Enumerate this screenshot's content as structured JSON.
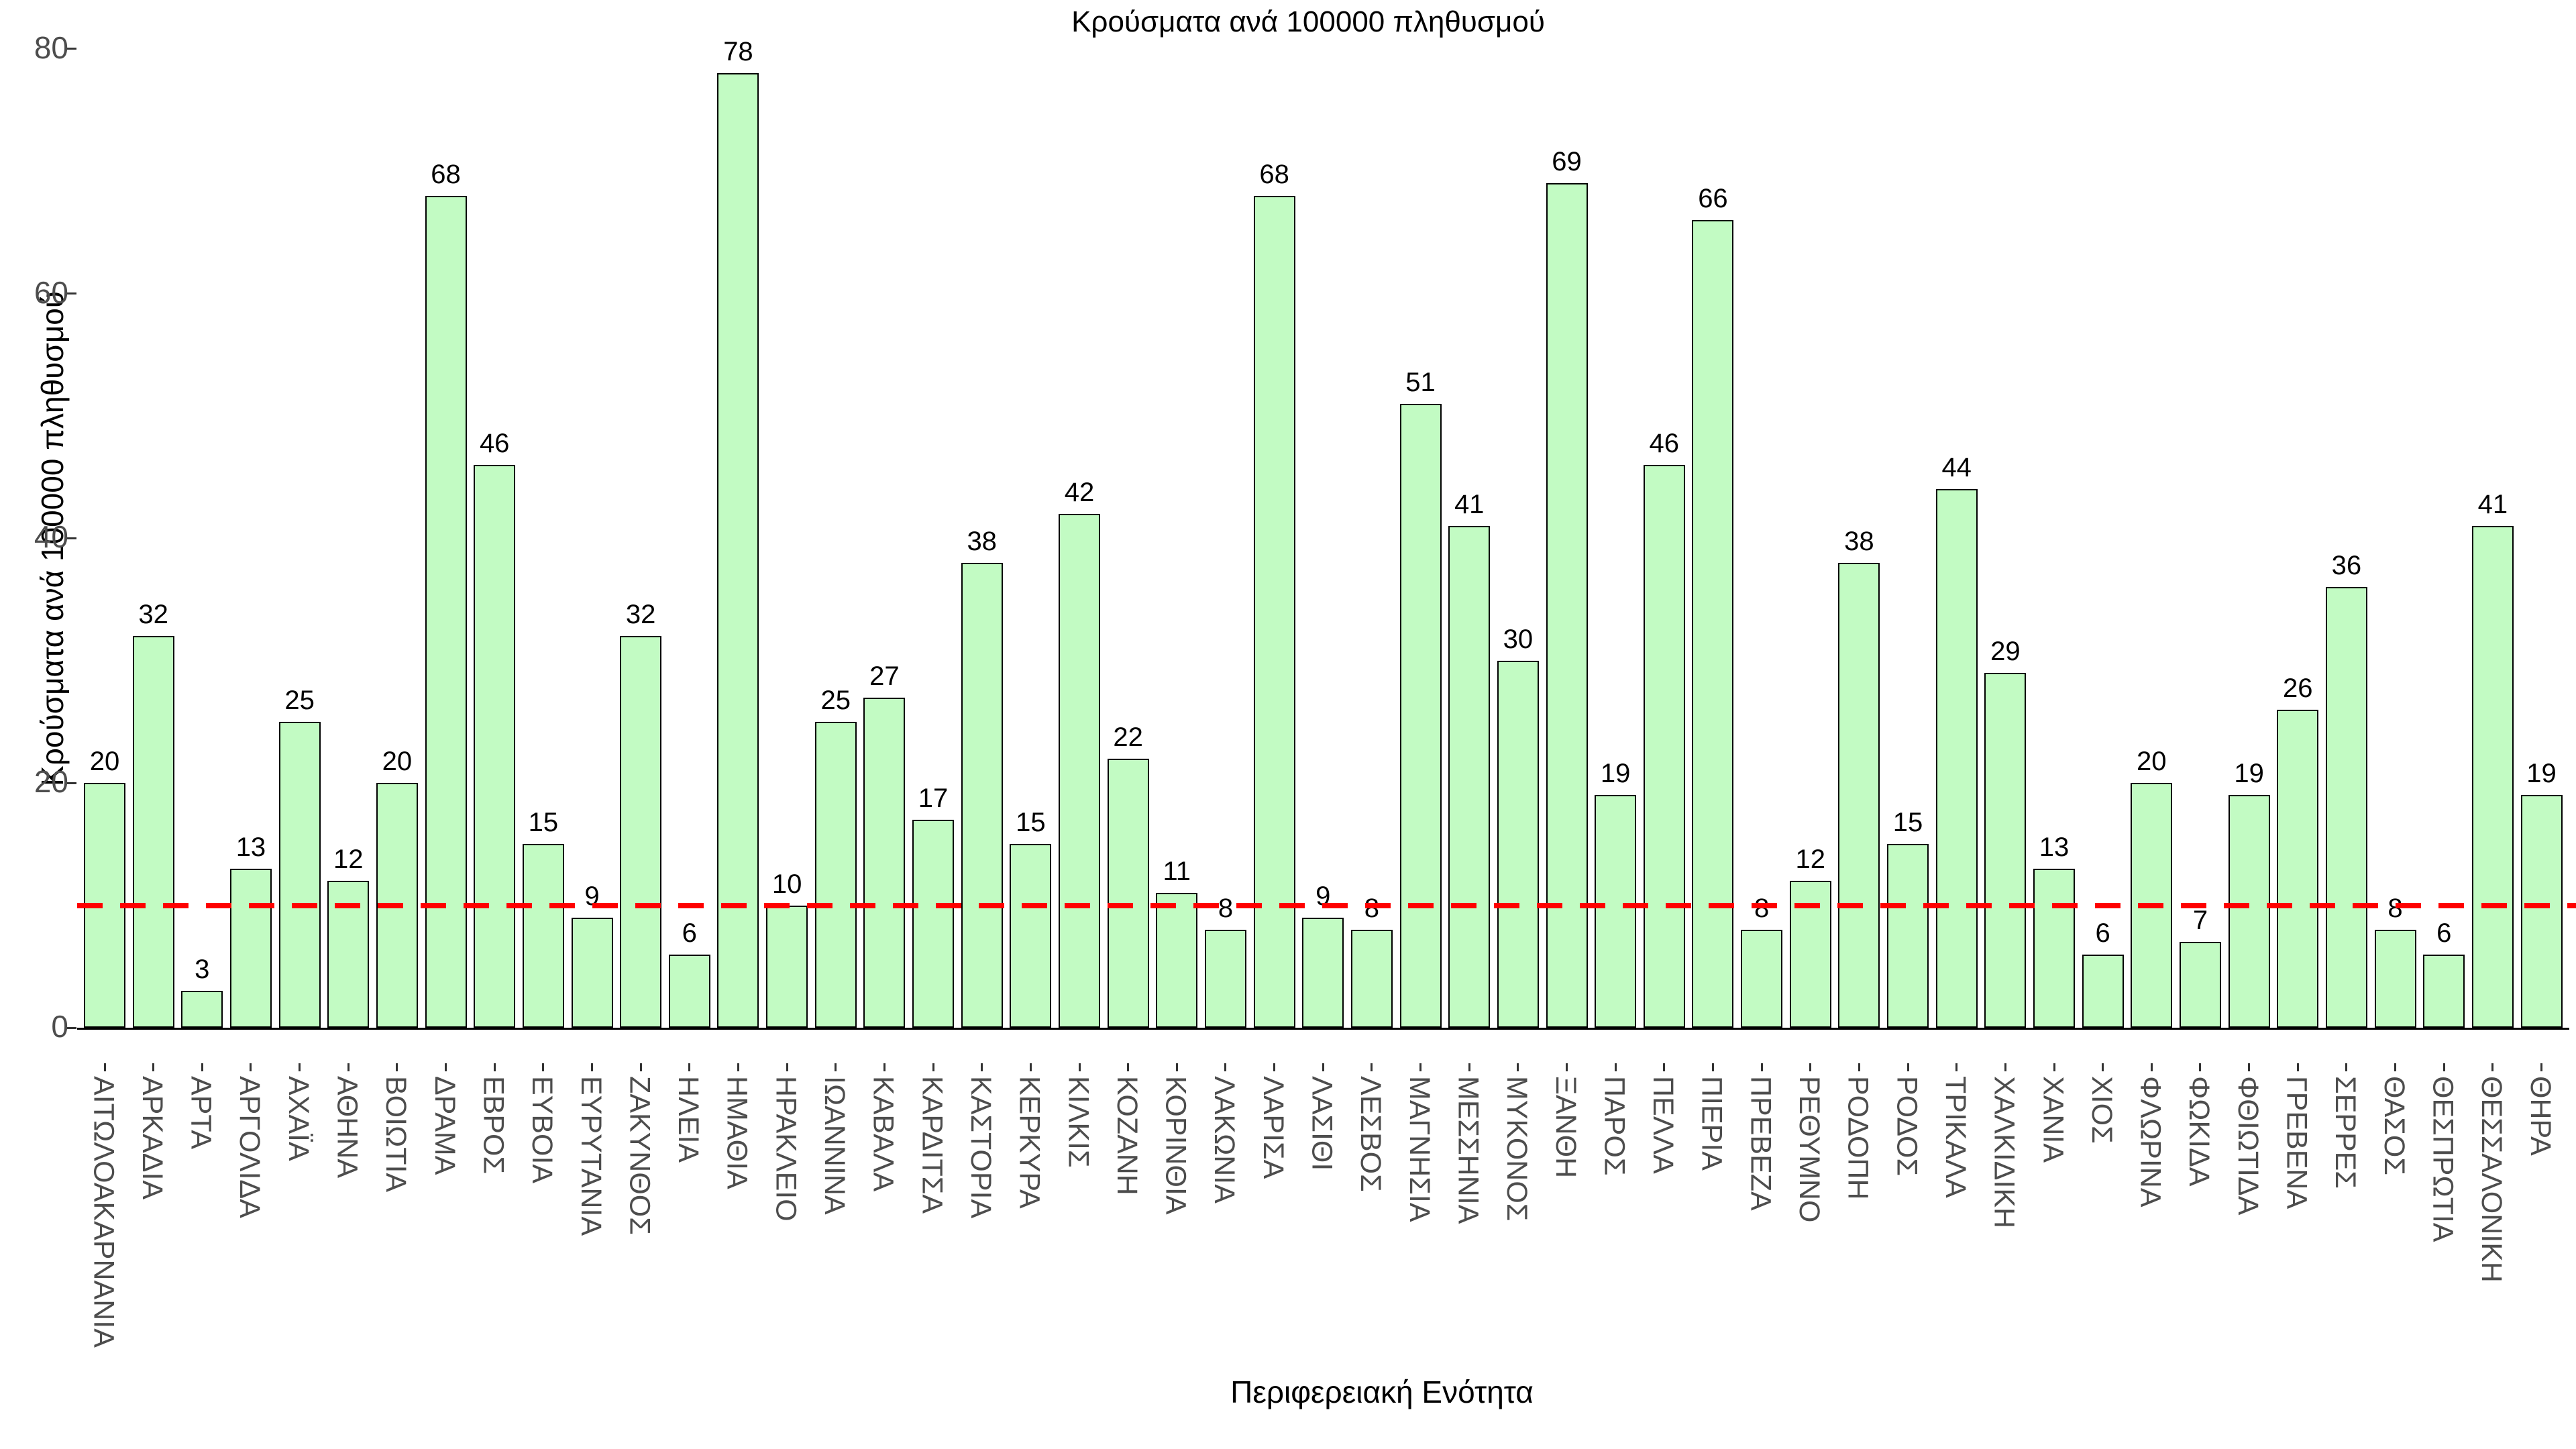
{
  "chart_data": {
    "type": "bar",
    "title": "Κρούσματα ανά 100000 πληθυσμού",
    "xlabel": "Περιφερειακή Ενότητα",
    "ylabel": "Κρούσματα ανά 100000 πληθυσμού",
    "categories": [
      "ΑΙΤΩΛΟΑΚΑΡΝΑΝΙΑ",
      "ΑΡΚΑΔΙΑ",
      "ΑΡΤΑ",
      "ΑΡΓΟΛΙΔΑ",
      "ΑΧΑΪΑ",
      "ΑΘΗΝΑ",
      "ΒΟΙΩΤΙΑ",
      "ΔΡΑΜΑ",
      "ΕΒΡΟΣ",
      "ΕΥΒΟΙΑ",
      "ΕΥΡΥΤΑΝΙΑ",
      "ΖΑΚΥΝΘΟΣ",
      "ΗΛΕΙΑ",
      "ΗΜΑΘΙΑ",
      "ΗΡΑΚΛΕΙΟ",
      "ΙΩΑΝΝΙΝΑ",
      "ΚΑΒΑΛΑ",
      "ΚΑΡΔΙΤΣΑ",
      "ΚΑΣΤΟΡΙΑ",
      "ΚΕΡΚΥΡΑ",
      "ΚΙΛΚΙΣ",
      "ΚΟΖΑΝΗ",
      "ΚΟΡΙΝΘΙΑ",
      "ΛΑΚΩΝΙΑ",
      "ΛΑΡΙΣΑ",
      "ΛΑΣΙΘΙ",
      "ΛΕΣΒΟΣ",
      "ΜΑΓΝΗΣΙΑ",
      "ΜΕΣΣΗΝΙΑ",
      "ΜΥΚΟΝΟΣ",
      "ΞΑΝΘΗ",
      "ΠΑΡΟΣ",
      "ΠΕΛΛΑ",
      "ΠΙΕΡΙΑ",
      "ΠΡΕΒΕΖΑ",
      "ΡΕΘΥΜΝΟ",
      "ΡΟΔΟΠΗ",
      "ΡΟΔΟΣ",
      "ΤΡΙΚΑΛΑ",
      "ΧΑΛΚΙΔΙΚΗ",
      "ΧΑΝΙΑ",
      "ΧΙΟΣ",
      "ΦΛΩΡΙΝΑ",
      "ΦΩΚΙΔΑ",
      "ΦΘΙΩΤΙΔΑ",
      "ΓΡΕΒΕΝΑ",
      "ΣΕΡΡΕΣ",
      "ΘΑΣΟΣ",
      "ΘΕΣΠΡΩΤΙΑ",
      "ΘΕΣΣΑΛΟΝΙΚΗ",
      "ΘΗΡΑ"
    ],
    "values": [
      20,
      32,
      3,
      13,
      25,
      12,
      20,
      68,
      46,
      15,
      9,
      32,
      6,
      78,
      10,
      25,
      27,
      17,
      38,
      15,
      42,
      22,
      11,
      8,
      68,
      9,
      8,
      51,
      41,
      30,
      69,
      19,
      46,
      66,
      8,
      12,
      38,
      15,
      44,
      29,
      13,
      6,
      20,
      7,
      19,
      26,
      36,
      8,
      6,
      41,
      19
    ],
    "yticks": [
      0,
      20,
      40,
      60,
      80
    ],
    "ylim": [
      0,
      80
    ],
    "grid": false,
    "legend": "none",
    "bar_fill_color": "#c2fbc3",
    "bar_border_color": "#000000",
    "tick_label_color": "#4d4d4d",
    "reference_line": {
      "value": 10,
      "color": "#ff0000",
      "style": "dashed"
    }
  }
}
